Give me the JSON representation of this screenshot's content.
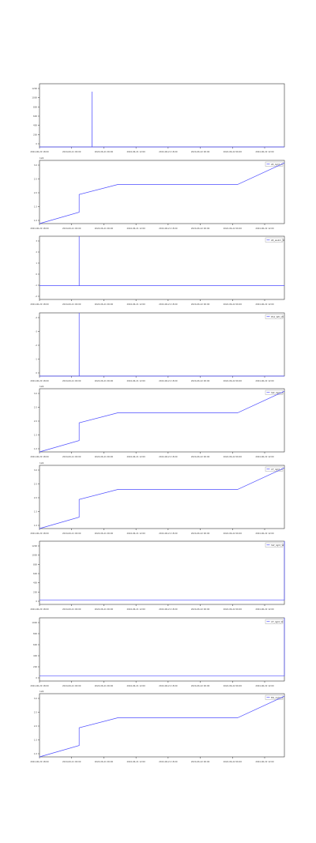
{
  "colors": {
    "line": "#4d4dff",
    "axis": "#333333",
    "text": "#444444"
  },
  "chart_data": [
    {
      "type": "line",
      "x_ticks": [
        "2024-06-20 18:00",
        "2024-06-21 00:00",
        "2024-06-21 06:00",
        "2024-06-21 12:00",
        "2024-06-21 18:00",
        "2024-06-22 00:00",
        "2024-06-22 06:00",
        "2024-06-22 12:00"
      ],
      "y_ticks": [
        "0",
        "200",
        "400",
        "600",
        "800",
        "1000",
        "1200"
      ],
      "ylim": [
        0,
        1200
      ],
      "xlim": [
        0,
        42
      ],
      "y_offset_text": "",
      "legend": "",
      "series": [
        {
          "x": [
            0,
            9,
            9,
            9.01,
            42
          ],
          "y": [
            0,
            0,
            1050,
            0,
            0
          ]
        }
      ]
    },
    {
      "type": "line",
      "x_ticks": [
        "2024-06-20 18:00",
        "2024-06-21 00:00",
        "2024-06-21 06:00",
        "2024-06-21 12:00",
        "2024-06-21 18:00",
        "2024-06-22 00:00",
        "2024-06-22 06:00",
        "2024-06-22 12:00"
      ],
      "y_ticks": [
        "1.0",
        "1.5",
        "2.0",
        "2.5",
        "3.0"
      ],
      "ylim": [
        0.9,
        3.4
      ],
      "xlim": [
        0,
        42
      ],
      "y_offset_text": "1e9",
      "legend": "LB_light_A",
      "series": [
        {
          "x": [
            0,
            6.8,
            6.8,
            13.5,
            34,
            42
          ],
          "y": [
            0.9,
            1.35,
            2.05,
            2.45,
            2.45,
            3.3
          ]
        }
      ]
    },
    {
      "type": "line",
      "x_ticks": [
        "2024-06-20 18:00",
        "2024-06-21 00:00",
        "2024-06-21 06:00",
        "2024-06-21 12:00",
        "2024-06-21 18:00",
        "2024-06-22 00:00",
        "2024-06-22 06:00",
        "2024-06-22 12:00"
      ],
      "y_ticks": [
        "-2",
        "-1",
        "0",
        "1",
        "2",
        "3"
      ],
      "ylim": [
        -2.5,
        9
      ],
      "xlim": [
        0,
        42
      ],
      "y_offset_text": "",
      "legend": "LB_ws2m_W",
      "series": [
        {
          "x": [
            0,
            6.8,
            6.8,
            6.81,
            42
          ],
          "y": [
            0,
            0,
            9,
            0,
            0
          ]
        }
      ]
    },
    {
      "type": "line",
      "x_ticks": [
        "2024-06-20 18:00",
        "2024-06-21 00:00",
        "2024-06-21 06:00",
        "2024-06-21 12:00",
        "2024-06-21 18:00",
        "2024-06-22 00:00",
        "2024-06-22 06:00",
        "2024-06-22 12:00"
      ],
      "y_ticks": [
        "0",
        "-1",
        "-2",
        "-3",
        "-4"
      ],
      "ylim": [
        -4.5,
        0.3
      ],
      "xlim": [
        0,
        42
      ],
      "y_offset_text": "",
      "legend": "PS2_WD_W",
      "series": [
        {
          "x": [
            0,
            6.8,
            6.8,
            6.81,
            42
          ],
          "y": [
            -4.5,
            -4.5,
            0.3,
            -4.5,
            -4.5
          ]
        }
      ]
    },
    {
      "type": "line",
      "x_ticks": [
        "2024-06-20 18:00",
        "2024-06-21 00:00",
        "2024-06-21 06:00",
        "2024-06-21 12:00",
        "2024-06-21 18:00",
        "2024-06-22 00:00",
        "2024-06-22 06:00",
        "2024-06-22 12:00"
      ],
      "y_ticks": [
        "1.0",
        "1.5",
        "2.0",
        "2.5",
        "3.0"
      ],
      "ylim": [
        0.9,
        3.4
      ],
      "xlim": [
        0,
        42
      ],
      "y_offset_text": "1e9",
      "legend": "SW_light_A",
      "series": [
        {
          "x": [
            0,
            6.8,
            6.8,
            13.5,
            34,
            42
          ],
          "y": [
            0.9,
            1.35,
            2.05,
            2.45,
            2.45,
            3.3
          ]
        }
      ]
    },
    {
      "type": "line",
      "x_ticks": [
        "2024-06-20 18:00",
        "2024-06-21 00:00",
        "2024-06-21 06:00",
        "2024-06-21 12:00",
        "2024-06-21 18:00",
        "2024-06-22 00:00",
        "2024-06-22 06:00",
        "2024-06-22 12:00"
      ],
      "y_ticks": [
        "1.0",
        "1.5",
        "2.0",
        "2.5",
        "3.0"
      ],
      "ylim": [
        0.9,
        3.4
      ],
      "xlim": [
        0,
        42
      ],
      "y_offset_text": "1e9",
      "legend": "CF_light_A",
      "series": [
        {
          "x": [
            0,
            6.8,
            6.8,
            13.5,
            34,
            42
          ],
          "y": [
            0.9,
            1.35,
            2.05,
            2.45,
            2.45,
            3.3
          ]
        }
      ]
    },
    {
      "type": "line",
      "x_ticks": [
        "2024-06-20 18:00",
        "2024-06-21 00:00",
        "2024-06-21 06:00",
        "2024-06-21 12:00",
        "2024-06-21 18:00",
        "2024-06-22 00:00",
        "2024-06-22 06:00",
        "2024-06-22 12:00"
      ],
      "y_ticks": [
        "0",
        "200",
        "400",
        "600",
        "800",
        "1000",
        "1200"
      ],
      "ylim": [
        -100,
        1300
      ],
      "xlim": [
        0,
        42
      ],
      "y_offset_text": "",
      "legend": "SW_light_W",
      "series": [
        {
          "x": [
            0,
            42,
            42
          ],
          "y": [
            0,
            0,
            1300
          ]
        }
      ]
    },
    {
      "type": "line",
      "x_ticks": [
        "2024-06-20 18:00",
        "2024-06-21 00:00",
        "2024-06-21 06:00",
        "2024-06-21 12:00",
        "2024-06-21 18:00",
        "2024-06-22 00:00",
        "2024-06-22 06:00",
        "2024-06-22 12:00"
      ],
      "y_ticks": [
        "0",
        "200",
        "400",
        "600",
        "800",
        "1000"
      ],
      "ylim": [
        -100,
        1100
      ],
      "xlim": [
        0,
        42
      ],
      "y_offset_text": "",
      "legend": "CF_light_W",
      "series": [
        {
          "x": [
            0,
            42,
            42
          ],
          "y": [
            0,
            0,
            1100
          ]
        }
      ]
    },
    {
      "type": "line",
      "x_ticks": [
        "2024-06-20 18:00",
        "2024-06-21 00:00",
        "2024-06-21 06:00",
        "2024-06-21 12:00",
        "2024-06-21 18:00",
        "2024-06-22 00:00",
        "2024-06-22 06:00",
        "2024-06-22 12:00"
      ],
      "y_ticks": [
        "1.0",
        "1.5",
        "2.0",
        "2.5",
        "3.0"
      ],
      "ylim": [
        0.9,
        3.4
      ],
      "xlim": [
        0,
        42
      ],
      "y_offset_text": "1e9",
      "legend": "MS_light_A",
      "series": [
        {
          "x": [
            0,
            6.8,
            6.8,
            13.5,
            34,
            42
          ],
          "y": [
            0.9,
            1.35,
            2.05,
            2.45,
            2.45,
            3.3
          ]
        }
      ]
    }
  ]
}
